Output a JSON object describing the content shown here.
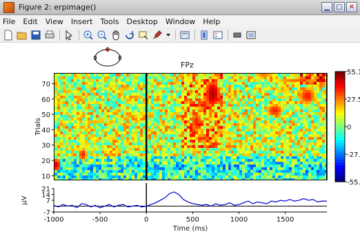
{
  "window": {
    "title": "Figure 2: erpimage()",
    "controls": [
      "minimize-icon",
      "maximize-icon",
      "close-icon"
    ]
  },
  "menubar": {
    "items": [
      "File",
      "Edit",
      "View",
      "Insert",
      "Tools",
      "Desktop",
      "Window",
      "Help"
    ]
  },
  "toolbar": {
    "buttons": [
      "new-figure-icon",
      "open-file-icon",
      "save-icon",
      "print-icon",
      "select-arrow-icon",
      "zoom-in-icon",
      "zoom-out-icon",
      "pan-hand-icon",
      "rotate-3d-icon",
      "data-cursor-icon",
      "brush-icon",
      "dropdown-arrow-icon",
      "link-plot-icon",
      "colorbar-icon",
      "legend-icon",
      "hide-plot-tools-icon",
      "show-plot-tools-icon"
    ]
  },
  "figure": {
    "channel": "FPz",
    "trials_label": "Trials",
    "erp_label": "μV",
    "time_label": "Time (ms)"
  },
  "chart_data": [
    {
      "type": "heatmap",
      "ylabel": "Trials",
      "xlim": [
        -1000,
        1950
      ],
      "ylim": [
        7,
        77
      ],
      "y_ticks": [
        "70",
        "60",
        "50",
        "40",
        "30",
        "20",
        "10"
      ],
      "colorbar_ticks": [
        "55.1",
        "27.5",
        "0",
        "-27.",
        "-55."
      ],
      "clim": [
        -55.1,
        55.1
      ],
      "stimulus_onset_x": 0
    },
    {
      "type": "line",
      "ylabel": "μV",
      "xlabel": "Time (ms)",
      "x_ticks": [
        "-1000",
        "-500",
        "0",
        "500",
        "1000",
        "1500"
      ],
      "x_tick_values": [
        -1000,
        -500,
        0,
        500,
        1000,
        1500
      ],
      "y_ticks": [
        "21",
        "14",
        "7",
        "-7"
      ],
      "y_tick_values": [
        21,
        14,
        7,
        -7
      ],
      "xlim": [
        -1000,
        1950
      ],
      "ylim": [
        -7,
        21
      ],
      "series": [
        {
          "values_x": [
            -1000,
            -950,
            -900,
            -850,
            -800,
            -750,
            -700,
            -650,
            -600,
            -550,
            -500,
            -450,
            -400,
            -350,
            -300,
            -250,
            -200,
            -150,
            -100,
            -50,
            0,
            50,
            100,
            150,
            200,
            250,
            300,
            350,
            400,
            450,
            500,
            550,
            600,
            650,
            700,
            750,
            800,
            850,
            900,
            950,
            1000,
            1050,
            1100,
            1150,
            1200,
            1250,
            1300,
            1350,
            1400,
            1450,
            1500,
            1550,
            1600,
            1650,
            1700,
            1750,
            1800,
            1850,
            1900,
            1950
          ],
          "values_y": [
            1,
            -1,
            2,
            0,
            1,
            -2,
            3,
            2,
            -1,
            1,
            -2,
            0,
            2,
            -1,
            1,
            2,
            -1,
            0,
            1,
            -1,
            0,
            2,
            4,
            7,
            10,
            15,
            17,
            14,
            8,
            5,
            3,
            2,
            1,
            2,
            0,
            3,
            1,
            2,
            4,
            1,
            2,
            4,
            6,
            3,
            5,
            4,
            3,
            6,
            5,
            7,
            6,
            8,
            6,
            7,
            9,
            7,
            8,
            5,
            6,
            6
          ]
        }
      ]
    }
  ]
}
